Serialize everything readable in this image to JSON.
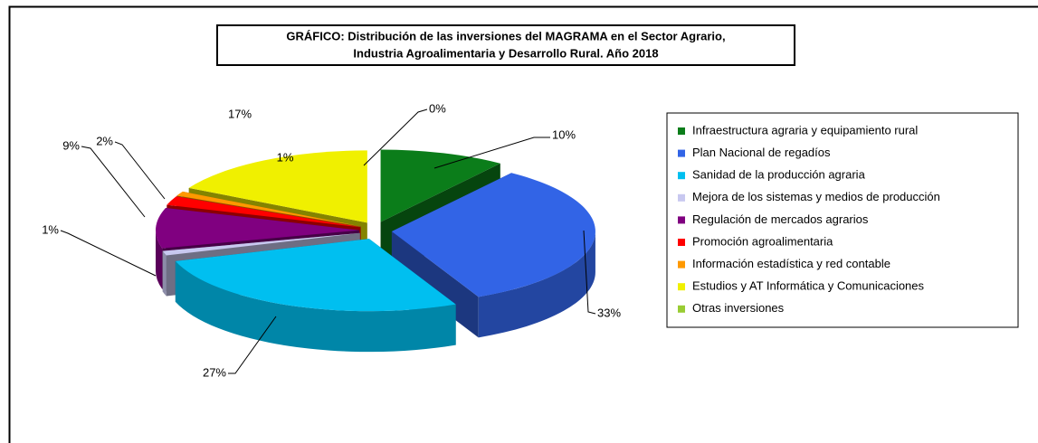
{
  "chart_data": {
    "type": "pie",
    "title": [
      "GRÁFICO: Distribución de las inversiones del MAGRAMA en el Sector Agrario,",
      "Industria Agroalimentaria y Desarrollo Rural. Año 2018"
    ],
    "categories": [
      "Infraestructura agraria y equipamiento rural",
      "Plan Nacional de regadíos",
      "Sanidad de la producción agraria",
      "Mejora de los sistemas y medios de producción",
      "Regulación de mercados agrarios",
      "Promoción agroalimentaria",
      "Información estadística y red contable",
      "Estudios y AT Informática y Comunicaciones",
      "Otras inversiones"
    ],
    "values": [
      10,
      33,
      27,
      1,
      9,
      2,
      1,
      17,
      0
    ],
    "value_labels": [
      "10%",
      "33%",
      "27%",
      "1%",
      "9%",
      "2%",
      "1%",
      "17%",
      "0%"
    ],
    "colors": [
      "#0b7d1a",
      "#3264e6",
      "#00bff0",
      "#c8c8f0",
      "#800080",
      "#ff0000",
      "#ff9900",
      "#f0f000",
      "#99cc33"
    ],
    "legend": "right"
  }
}
